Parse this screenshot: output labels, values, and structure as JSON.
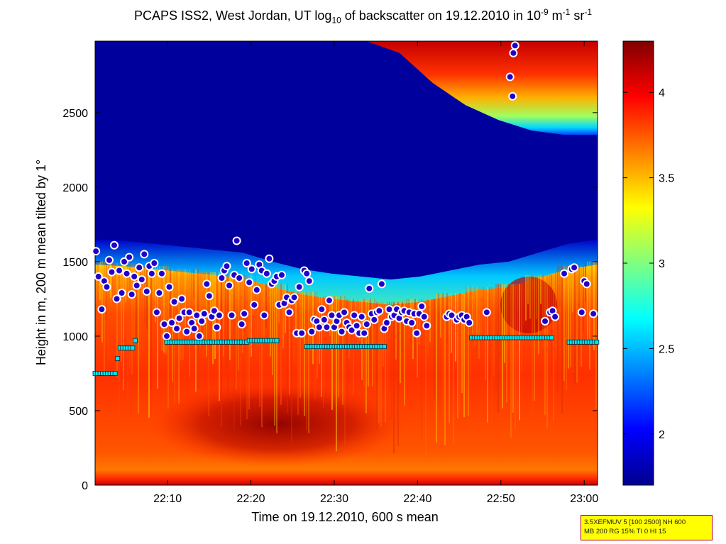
{
  "chart_data": {
    "type": "heatmap",
    "title": {
      "p1": "PCAPS ISS2, West Jordan, UT log",
      "sub": "10",
      "p2": " of backscatter on 19.12.2010 in 10",
      "sup1": "-9",
      "p3": " m",
      "sup2": "-1",
      "p4": " sr",
      "sup3": "-1"
    },
    "xlabel": "Time on 19.12.2010, 600 s mean",
    "ylabel": "Height in m, 200 m mean tilted by 1°",
    "x_unit": "minutes after 22:00 UTC",
    "xlim": [
      1.3,
      61.6
    ],
    "ylim": [
      0,
      2980
    ],
    "x_ticks": [
      {
        "v": 10,
        "label": "22:10"
      },
      {
        "v": 20,
        "label": "22:20"
      },
      {
        "v": 30,
        "label": "22:30"
      },
      {
        "v": 40,
        "label": "22:40"
      },
      {
        "v": 50,
        "label": "22:50"
      },
      {
        "v": 60,
        "label": "23:00"
      }
    ],
    "y_ticks": [
      0,
      500,
      1000,
      1500,
      2000,
      2500
    ],
    "colorbar": {
      "clim": [
        1.7,
        4.3
      ],
      "ticks": [
        2,
        2.5,
        3,
        3.5,
        4
      ],
      "colormap": "jet"
    },
    "background_field": {
      "description_free": true,
      "low_layer_max": 4.25,
      "aerosol_top_m": [
        1650,
        1640,
        1620,
        1600,
        1580,
        1560,
        1500,
        1450,
        1420,
        1400,
        1380,
        1400,
        1440,
        1480,
        1500,
        1560,
        1620,
        1650
      ],
      "upper_cloud_base_m": [
        2980,
        2980,
        2900,
        2700,
        2550,
        2450,
        2380,
        2350,
        2350
      ]
    },
    "series": [
      {
        "marker": "circle",
        "color": "#2200cc",
        "points": [
          [
            1.4,
            1570
          ],
          [
            1.7,
            1400
          ],
          [
            2.1,
            1180
          ],
          [
            2.4,
            1370
          ],
          [
            2.7,
            1330
          ],
          [
            3.0,
            1510
          ],
          [
            3.3,
            1430
          ],
          [
            3.6,
            1610
          ],
          [
            3.9,
            1250
          ],
          [
            4.2,
            1440
          ],
          [
            4.5,
            1290
          ],
          [
            4.8,
            1500
          ],
          [
            5.1,
            1420
          ],
          [
            5.4,
            1530
          ],
          [
            5.7,
            1280
          ],
          [
            6.0,
            1400
          ],
          [
            6.3,
            1340
          ],
          [
            6.6,
            1460
          ],
          [
            6.9,
            1380
          ],
          [
            7.2,
            1550
          ],
          [
            7.5,
            1300
          ],
          [
            7.8,
            1470
          ],
          [
            8.1,
            1420
          ],
          [
            8.4,
            1490
          ],
          [
            8.7,
            1160
          ],
          [
            9.0,
            1290
          ],
          [
            9.3,
            1420
          ],
          [
            9.6,
            1080
          ],
          [
            9.9,
            1000
          ],
          [
            10.2,
            1330
          ],
          [
            10.5,
            1090
          ],
          [
            10.8,
            1230
          ],
          [
            11.1,
            1050
          ],
          [
            11.4,
            1120
          ],
          [
            11.7,
            1250
          ],
          [
            12.0,
            1160
          ],
          [
            12.3,
            1030
          ],
          [
            12.6,
            1160
          ],
          [
            12.9,
            1090
          ],
          [
            13.2,
            1050
          ],
          [
            13.5,
            1140
          ],
          [
            13.8,
            1000
          ],
          [
            14.1,
            1100
          ],
          [
            14.4,
            1150
          ],
          [
            14.7,
            1350
          ],
          [
            15.0,
            1270
          ],
          [
            15.3,
            1130
          ],
          [
            15.6,
            1170
          ],
          [
            15.9,
            1060
          ],
          [
            16.2,
            1140
          ],
          [
            16.5,
            1390
          ],
          [
            16.8,
            1440
          ],
          [
            17.1,
            1470
          ],
          [
            17.4,
            1340
          ],
          [
            17.7,
            1140
          ],
          [
            18.0,
            1410
          ],
          [
            18.3,
            1640
          ],
          [
            18.6,
            1390
          ],
          [
            18.9,
            1080
          ],
          [
            19.2,
            1150
          ],
          [
            19.5,
            1490
          ],
          [
            19.8,
            1360
          ],
          [
            20.1,
            1450
          ],
          [
            20.4,
            1210
          ],
          [
            20.7,
            1310
          ],
          [
            21.0,
            1480
          ],
          [
            21.3,
            1440
          ],
          [
            21.6,
            1140
          ],
          [
            21.9,
            1420
          ],
          [
            22.2,
            1520
          ],
          [
            22.5,
            1350
          ],
          [
            22.8,
            1370
          ],
          [
            23.1,
            1400
          ],
          [
            23.4,
            1210
          ],
          [
            23.7,
            1410
          ],
          [
            24.0,
            1220
          ],
          [
            24.3,
            1260
          ],
          [
            24.6,
            1160
          ],
          [
            24.9,
            1240
          ],
          [
            25.2,
            1260
          ],
          [
            25.5,
            1020
          ],
          [
            25.8,
            1330
          ],
          [
            26.1,
            1020
          ],
          [
            26.4,
            1440
          ],
          [
            26.7,
            1420
          ],
          [
            27.0,
            1370
          ],
          [
            27.3,
            1030
          ],
          [
            27.6,
            1110
          ],
          [
            27.9,
            1100
          ],
          [
            28.2,
            1060
          ],
          [
            28.5,
            1180
          ],
          [
            28.8,
            1110
          ],
          [
            29.1,
            1060
          ],
          [
            29.4,
            1240
          ],
          [
            29.7,
            1140
          ],
          [
            30.0,
            1060
          ],
          [
            30.3,
            1100
          ],
          [
            30.6,
            1140
          ],
          [
            30.9,
            1030
          ],
          [
            31.2,
            1160
          ],
          [
            31.5,
            1090
          ],
          [
            31.8,
            1060
          ],
          [
            32.1,
            1040
          ],
          [
            32.4,
            1140
          ],
          [
            32.7,
            1070
          ],
          [
            33.0,
            1020
          ],
          [
            33.3,
            1130
          ],
          [
            33.6,
            1020
          ],
          [
            33.9,
            1080
          ],
          [
            34.2,
            1320
          ],
          [
            34.5,
            1150
          ],
          [
            34.8,
            1110
          ],
          [
            35.1,
            1160
          ],
          [
            35.4,
            1170
          ],
          [
            35.7,
            1350
          ],
          [
            36.0,
            1050
          ],
          [
            36.3,
            1090
          ],
          [
            36.6,
            1180
          ],
          [
            36.9,
            1130
          ],
          [
            37.2,
            1140
          ],
          [
            37.5,
            1180
          ],
          [
            37.8,
            1120
          ],
          [
            38.1,
            1160
          ],
          [
            38.4,
            1170
          ],
          [
            38.7,
            1100
          ],
          [
            39.0,
            1160
          ],
          [
            39.3,
            1090
          ],
          [
            39.6,
            1150
          ],
          [
            39.9,
            1020
          ],
          [
            40.2,
            1150
          ],
          [
            40.5,
            1200
          ],
          [
            40.8,
            1130
          ],
          [
            41.1,
            1070
          ],
          [
            43.5,
            1130
          ],
          [
            43.8,
            1150
          ],
          [
            44.1,
            1140
          ],
          [
            44.7,
            1110
          ],
          [
            45.0,
            1130
          ],
          [
            45.3,
            1140
          ],
          [
            45.6,
            1110
          ],
          [
            45.9,
            1130
          ],
          [
            46.2,
            1090
          ],
          [
            48.3,
            1160
          ],
          [
            51.1,
            2740
          ],
          [
            51.4,
            2610
          ],
          [
            51.5,
            2900
          ],
          [
            51.7,
            2950
          ],
          [
            55.3,
            1100
          ],
          [
            55.9,
            1160
          ],
          [
            56.2,
            1170
          ],
          [
            56.5,
            1130
          ],
          [
            57.6,
            1420
          ],
          [
            58.5,
            1450
          ],
          [
            58.8,
            1460
          ],
          [
            59.7,
            1160
          ],
          [
            60.0,
            1370
          ],
          [
            60.3,
            1350
          ],
          [
            61.1,
            1150
          ]
        ]
      },
      {
        "marker": "square",
        "color": "#00e5ee",
        "points": [
          [
            1.3,
            750
          ],
          [
            1.6,
            750
          ],
          [
            1.9,
            750
          ],
          [
            2.2,
            750
          ],
          [
            2.5,
            750
          ],
          [
            2.8,
            750
          ],
          [
            3.1,
            750
          ],
          [
            3.4,
            750
          ],
          [
            3.7,
            750
          ],
          [
            4.0,
            850
          ],
          [
            4.3,
            920
          ],
          [
            4.6,
            920
          ],
          [
            4.9,
            920
          ],
          [
            5.2,
            920
          ],
          [
            5.5,
            920
          ],
          [
            5.8,
            920
          ],
          [
            6.1,
            970
          ],
          [
            9.9,
            960
          ],
          [
            10.2,
            960
          ],
          [
            10.5,
            960
          ],
          [
            10.8,
            960
          ],
          [
            11.1,
            960
          ],
          [
            11.4,
            960
          ],
          [
            11.7,
            960
          ],
          [
            12.0,
            960
          ],
          [
            12.3,
            960
          ],
          [
            12.6,
            960
          ],
          [
            12.9,
            960
          ],
          [
            13.2,
            960
          ],
          [
            13.5,
            960
          ],
          [
            13.8,
            960
          ],
          [
            14.1,
            960
          ],
          [
            14.4,
            960
          ],
          [
            14.7,
            960
          ],
          [
            15.0,
            960
          ],
          [
            15.3,
            960
          ],
          [
            15.6,
            960
          ],
          [
            15.9,
            960
          ],
          [
            16.2,
            960
          ],
          [
            16.5,
            960
          ],
          [
            16.8,
            960
          ],
          [
            17.1,
            960
          ],
          [
            17.4,
            960
          ],
          [
            17.7,
            960
          ],
          [
            18.0,
            960
          ],
          [
            18.3,
            960
          ],
          [
            18.6,
            960
          ],
          [
            18.9,
            960
          ],
          [
            19.2,
            960
          ],
          [
            19.5,
            960
          ],
          [
            19.8,
            970
          ],
          [
            20.1,
            970
          ],
          [
            20.4,
            970
          ],
          [
            20.7,
            970
          ],
          [
            21.0,
            970
          ],
          [
            21.3,
            970
          ],
          [
            21.6,
            970
          ],
          [
            21.9,
            970
          ],
          [
            22.2,
            970
          ],
          [
            22.5,
            970
          ],
          [
            22.8,
            970
          ],
          [
            23.1,
            970
          ],
          [
            26.7,
            930
          ],
          [
            27.0,
            930
          ],
          [
            27.3,
            930
          ],
          [
            27.6,
            930
          ],
          [
            27.9,
            930
          ],
          [
            28.2,
            930
          ],
          [
            28.5,
            930
          ],
          [
            28.8,
            930
          ],
          [
            29.1,
            930
          ],
          [
            29.4,
            930
          ],
          [
            29.7,
            930
          ],
          [
            30.0,
            930
          ],
          [
            30.3,
            930
          ],
          [
            30.6,
            930
          ],
          [
            30.9,
            930
          ],
          [
            31.2,
            930
          ],
          [
            31.5,
            930
          ],
          [
            31.8,
            930
          ],
          [
            32.1,
            930
          ],
          [
            32.4,
            930
          ],
          [
            32.7,
            930
          ],
          [
            33.0,
            930
          ],
          [
            33.3,
            930
          ],
          [
            33.6,
            930
          ],
          [
            33.9,
            930
          ],
          [
            34.2,
            930
          ],
          [
            34.5,
            930
          ],
          [
            34.8,
            930
          ],
          [
            35.1,
            930
          ],
          [
            35.4,
            930
          ],
          [
            35.7,
            930
          ],
          [
            36.0,
            930
          ],
          [
            46.5,
            990
          ],
          [
            46.8,
            990
          ],
          [
            47.1,
            990
          ],
          [
            47.4,
            990
          ],
          [
            47.7,
            990
          ],
          [
            48.0,
            990
          ],
          [
            48.3,
            990
          ],
          [
            48.6,
            990
          ],
          [
            48.9,
            990
          ],
          [
            49.2,
            990
          ],
          [
            49.5,
            990
          ],
          [
            49.8,
            990
          ],
          [
            50.1,
            990
          ],
          [
            50.4,
            990
          ],
          [
            50.7,
            990
          ],
          [
            51.0,
            990
          ],
          [
            51.3,
            990
          ],
          [
            51.6,
            990
          ],
          [
            51.9,
            990
          ],
          [
            52.2,
            990
          ],
          [
            52.5,
            990
          ],
          [
            52.8,
            990
          ],
          [
            53.1,
            990
          ],
          [
            53.4,
            990
          ],
          [
            53.7,
            990
          ],
          [
            54.0,
            990
          ],
          [
            54.3,
            990
          ],
          [
            54.6,
            990
          ],
          [
            54.9,
            990
          ],
          [
            55.2,
            990
          ],
          [
            55.5,
            990
          ],
          [
            55.8,
            990
          ],
          [
            56.1,
            990
          ],
          [
            58.2,
            960
          ],
          [
            58.5,
            960
          ],
          [
            58.8,
            960
          ],
          [
            59.1,
            960
          ],
          [
            59.4,
            960
          ],
          [
            59.7,
            960
          ],
          [
            60.0,
            960
          ],
          [
            60.3,
            960
          ],
          [
            60.6,
            960
          ],
          [
            60.9,
            960
          ],
          [
            61.2,
            960
          ],
          [
            61.5,
            960
          ]
        ]
      }
    ]
  },
  "info_box": {
    "line1": "3.5XEFMUV 5 [100 2500] NH 600",
    "line2": "MB 200 RG 15% TI 0 HI 15"
  }
}
